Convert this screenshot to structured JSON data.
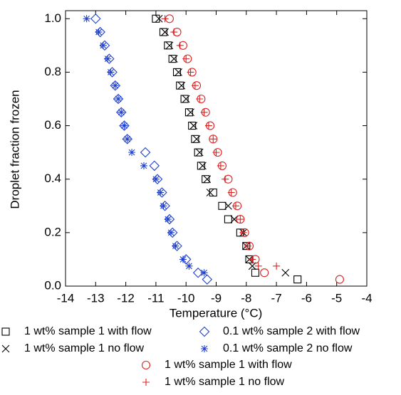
{
  "chart_data": {
    "type": "scatter",
    "xlabel": "Temperature (°C)",
    "ylabel": "Droplet fraction frozen",
    "xlim": [
      -14,
      -4
    ],
    "ylim": [
      0,
      1.03
    ],
    "xticks": [
      -14,
      -13,
      -12,
      -11,
      -10,
      -9,
      -8,
      -7,
      -6,
      -5,
      -4
    ],
    "yticks": [
      {
        "value": 0,
        "label": "0.0"
      },
      {
        "value": 0.2,
        "label": "0.2"
      },
      {
        "value": 0.4,
        "label": "0.4"
      },
      {
        "value": 0.6,
        "label": "0.6"
      },
      {
        "value": 0.8,
        "label": "0.8"
      },
      {
        "value": 1,
        "label": "1.0"
      }
    ],
    "legend": "bottom",
    "series": [
      {
        "name": "1 wt% sample 1 with flow",
        "color": "#000000",
        "marker": "square",
        "x": [
          -11.0,
          -10.75,
          -10.6,
          -10.45,
          -10.3,
          -10.2,
          -10.05,
          -9.9,
          -9.8,
          -9.7,
          -9.6,
          -9.5,
          -9.35,
          -9.1,
          -8.8,
          -8.6,
          -8.2,
          -8.0,
          -7.9,
          -7.7,
          -6.3
        ],
        "y": [
          1.0,
          0.95,
          0.9,
          0.85,
          0.8,
          0.75,
          0.7,
          0.65,
          0.6,
          0.55,
          0.5,
          0.45,
          0.4,
          0.35,
          0.3,
          0.25,
          0.2,
          0.15,
          0.1,
          0.05,
          0.025
        ]
      },
      {
        "name": "1 wt% sample 1 no flow",
        "color": "#000000",
        "marker": "x",
        "x": [
          -10.9,
          -10.7,
          -10.55,
          -10.4,
          -10.25,
          -10.15,
          -10.0,
          -9.85,
          -9.75,
          -9.65,
          -9.55,
          -9.45,
          -9.3,
          -9.2,
          -8.6,
          -8.4,
          -8.1,
          -8.0,
          -7.9,
          -7.8,
          -6.7
        ],
        "y": [
          1.0,
          0.95,
          0.9,
          0.85,
          0.8,
          0.75,
          0.7,
          0.65,
          0.6,
          0.55,
          0.5,
          0.45,
          0.4,
          0.35,
          0.3,
          0.25,
          0.2,
          0.15,
          0.1,
          0.075,
          0.05
        ]
      },
      {
        "name": "0.1 wt% sample 2 with flow",
        "color": "#1f3fd0",
        "marker": "diamond",
        "x": [
          -13.0,
          -12.85,
          -12.7,
          -12.55,
          -12.45,
          -12.35,
          -12.25,
          -12.15,
          -12.05,
          -11.95,
          -11.35,
          -11.05,
          -10.95,
          -10.8,
          -10.7,
          -10.55,
          -10.45,
          -10.3,
          -10.0,
          -9.6,
          -9.3
        ],
        "y": [
          1.0,
          0.95,
          0.9,
          0.85,
          0.8,
          0.75,
          0.7,
          0.65,
          0.6,
          0.55,
          0.5,
          0.45,
          0.4,
          0.35,
          0.3,
          0.25,
          0.2,
          0.15,
          0.1,
          0.05,
          0.025
        ]
      },
      {
        "name": "0.1 wt% sample 2 no flow",
        "color": "#1f3fd0",
        "marker": "asterisk",
        "x": [
          -13.3,
          -12.9,
          -12.75,
          -12.6,
          -12.5,
          -12.35,
          -12.25,
          -12.15,
          -12.05,
          -11.95,
          -11.8,
          -11.4,
          -11.0,
          -10.85,
          -10.75,
          -10.6,
          -10.5,
          -10.35,
          -10.1,
          -9.9,
          -9.4
        ],
        "y": [
          1.0,
          0.95,
          0.9,
          0.85,
          0.8,
          0.75,
          0.7,
          0.65,
          0.6,
          0.55,
          0.5,
          0.45,
          0.4,
          0.35,
          0.3,
          0.25,
          0.2,
          0.15,
          0.1,
          0.075,
          0.05
        ]
      },
      {
        "name": "1 wt% sample 1 with flow",
        "color": "#e02020",
        "marker": "circle",
        "x": [
          -10.55,
          -10.3,
          -10.1,
          -9.95,
          -9.8,
          -9.65,
          -9.5,
          -9.35,
          -9.2,
          -9.1,
          -8.95,
          -8.8,
          -8.6,
          -8.45,
          -8.3,
          -8.2,
          -8.05,
          -7.9,
          -7.7,
          -7.4,
          -4.9
        ],
        "y": [
          1.0,
          0.95,
          0.9,
          0.85,
          0.8,
          0.75,
          0.7,
          0.65,
          0.6,
          0.55,
          0.5,
          0.45,
          0.4,
          0.35,
          0.3,
          0.25,
          0.2,
          0.15,
          0.1,
          0.05,
          0.025
        ]
      },
      {
        "name": "1 wt% sample 1 no flow",
        "color": "#e02020",
        "marker": "plus",
        "x": [
          -10.7,
          -10.4,
          -10.2,
          -10.0,
          -9.85,
          -9.7,
          -9.55,
          -9.4,
          -9.25,
          -9.1,
          -9.0,
          -8.85,
          -8.7,
          -8.5,
          -8.35,
          -8.2,
          -8.1,
          -7.95,
          -7.8,
          -7.6,
          -7.0
        ],
        "y": [
          1.0,
          0.95,
          0.9,
          0.85,
          0.8,
          0.75,
          0.7,
          0.65,
          0.6,
          0.55,
          0.5,
          0.45,
          0.4,
          0.35,
          0.3,
          0.25,
          0.2,
          0.15,
          0.1,
          0.075,
          0.075
        ]
      }
    ]
  }
}
